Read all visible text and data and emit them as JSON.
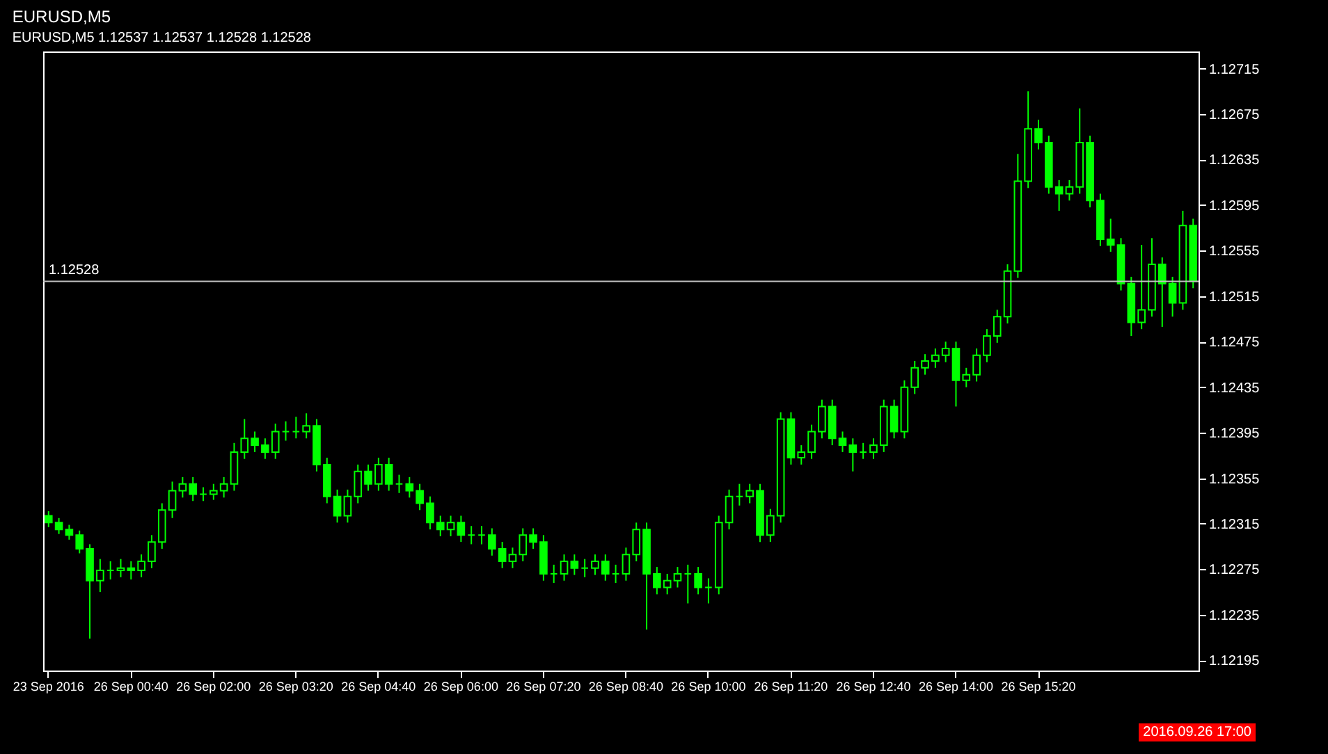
{
  "chart_data": {
    "type": "candlestick",
    "title": "EURUSD,M5",
    "subtitle": "EURUSD,M5  1.12537 1.12537 1.12528 1.12528",
    "color": "#00ff00",
    "categories": [
      "23 Sep 2016",
      null,
      null,
      null,
      null,
      null,
      null,
      null,
      "26 Sep 00:40",
      null,
      null,
      null,
      null,
      null,
      null,
      null,
      "26 Sep 02:00",
      null,
      null,
      null,
      null,
      null,
      null,
      null,
      "26 Sep 03:20",
      null,
      null,
      null,
      null,
      null,
      null,
      null,
      "26 Sep 04:40",
      null,
      null,
      null,
      null,
      null,
      null,
      null,
      "26 Sep 06:00",
      null,
      null,
      null,
      null,
      null,
      null,
      null,
      "26 Sep 07:20",
      null,
      null,
      null,
      null,
      null,
      null,
      null,
      "26 Sep 08:40",
      null,
      null,
      null,
      null,
      null,
      null,
      null,
      "26 Sep 10:00",
      null,
      null,
      null,
      null,
      null,
      null,
      null,
      "26 Sep 11:20",
      null,
      null,
      null,
      null,
      null,
      null,
      null,
      "26 Sep 12:40",
      null,
      null,
      null,
      null,
      null,
      null,
      null,
      "26 Sep 14:00",
      null,
      null,
      null,
      null,
      null,
      null,
      null,
      "26 Sep 15:20",
      null,
      null,
      null,
      null,
      null,
      null,
      null,
      null,
      null,
      null,
      null,
      null,
      null,
      null,
      null
    ],
    "ohlc": [
      [
        1.12322,
        1.12326,
        1.12312,
        1.12316
      ],
      [
        1.12316,
        1.1232,
        1.12306,
        1.1231
      ],
      [
        1.1231,
        1.12314,
        1.12301,
        1.12305
      ],
      [
        1.12305,
        1.12309,
        1.12289,
        1.12293
      ],
      [
        1.12293,
        1.12297,
        1.12214,
        1.12265
      ],
      [
        1.12265,
        1.12284,
        1.12255,
        1.12274
      ],
      [
        1.12274,
        1.12282,
        1.12266,
        1.12274
      ],
      [
        1.12274,
        1.12284,
        1.12268,
        1.12276
      ],
      [
        1.12276,
        1.12282,
        1.12266,
        1.12274
      ],
      [
        1.12274,
        1.12288,
        1.12268,
        1.12282
      ],
      [
        1.12282,
        1.12305,
        1.12276,
        1.12299
      ],
      [
        1.12299,
        1.12333,
        1.12293,
        1.12327
      ],
      [
        1.12327,
        1.12352,
        1.1232,
        1.12344
      ],
      [
        1.12344,
        1.12356,
        1.12338,
        1.1235
      ],
      [
        1.1235,
        1.12356,
        1.12335,
        1.12341
      ],
      [
        1.12341,
        1.12347,
        1.12335,
        1.12341
      ],
      [
        1.12341,
        1.1235,
        1.12336,
        1.12344
      ],
      [
        1.12344,
        1.12356,
        1.12338,
        1.1235
      ],
      [
        1.1235,
        1.12386,
        1.12344,
        1.12378
      ],
      [
        1.12378,
        1.12407,
        1.12372,
        1.1239
      ],
      [
        1.1239,
        1.12396,
        1.12378,
        1.12384
      ],
      [
        1.12384,
        1.1239,
        1.12372,
        1.12378
      ],
      [
        1.12378,
        1.12403,
        1.12372,
        1.12396
      ],
      [
        1.12396,
        1.12405,
        1.12388,
        1.12396
      ],
      [
        1.12396,
        1.12409,
        1.1239,
        1.12396
      ],
      [
        1.12396,
        1.12412,
        1.1239,
        1.12401
      ],
      [
        1.12401,
        1.12407,
        1.12361,
        1.12367
      ],
      [
        1.12367,
        1.12373,
        1.12333,
        1.12339
      ],
      [
        1.12339,
        1.12345,
        1.12316,
        1.12322
      ],
      [
        1.12322,
        1.12345,
        1.12316,
        1.12339
      ],
      [
        1.12339,
        1.12367,
        1.12333,
        1.12361
      ],
      [
        1.12361,
        1.12367,
        1.12344,
        1.1235
      ],
      [
        1.1235,
        1.12373,
        1.12344,
        1.12367
      ],
      [
        1.12367,
        1.12373,
        1.12344,
        1.1235
      ],
      [
        1.1235,
        1.12358,
        1.12342,
        1.1235
      ],
      [
        1.1235,
        1.12356,
        1.12338,
        1.12344
      ],
      [
        1.12344,
        1.1235,
        1.12327,
        1.12333
      ],
      [
        1.12333,
        1.12339,
        1.1231,
        1.12316
      ],
      [
        1.12316,
        1.12322,
        1.12304,
        1.1231
      ],
      [
        1.1231,
        1.12322,
        1.12304,
        1.12316
      ],
      [
        1.12316,
        1.12322,
        1.12299,
        1.12305
      ],
      [
        1.12305,
        1.12313,
        1.12297,
        1.12305
      ],
      [
        1.12305,
        1.12313,
        1.12297,
        1.12305
      ],
      [
        1.12305,
        1.12311,
        1.12287,
        1.12293
      ],
      [
        1.12293,
        1.12299,
        1.12276,
        1.12282
      ],
      [
        1.12282,
        1.12294,
        1.12276,
        1.12288
      ],
      [
        1.12288,
        1.12311,
        1.12282,
        1.12305
      ],
      [
        1.12305,
        1.12311,
        1.12293,
        1.12299
      ],
      [
        1.12299,
        1.12305,
        1.12265,
        1.12271
      ],
      [
        1.12271,
        1.12279,
        1.12263,
        1.12271
      ],
      [
        1.12271,
        1.12288,
        1.12265,
        1.12282
      ],
      [
        1.12282,
        1.12288,
        1.1227,
        1.12276
      ],
      [
        1.12276,
        1.12284,
        1.12268,
        1.12276
      ],
      [
        1.12276,
        1.12288,
        1.1227,
        1.12282
      ],
      [
        1.12282,
        1.12288,
        1.12265,
        1.12271
      ],
      [
        1.12271,
        1.12279,
        1.12263,
        1.12271
      ],
      [
        1.12271,
        1.12294,
        1.12265,
        1.12288
      ],
      [
        1.12288,
        1.12316,
        1.12282,
        1.1231
      ],
      [
        1.1231,
        1.12316,
        1.12222,
        1.12271
      ],
      [
        1.12271,
        1.12277,
        1.12253,
        1.12259
      ],
      [
        1.12259,
        1.12271,
        1.12253,
        1.12265
      ],
      [
        1.12265,
        1.12277,
        1.12259,
        1.12271
      ],
      [
        1.12271,
        1.12279,
        1.12245,
        1.12271
      ],
      [
        1.12271,
        1.12277,
        1.12253,
        1.12259
      ],
      [
        1.12259,
        1.12267,
        1.12245,
        1.12259
      ],
      [
        1.12259,
        1.12322,
        1.12253,
        1.12316
      ],
      [
        1.12316,
        1.12345,
        1.1231,
        1.12339
      ],
      [
        1.12339,
        1.1235,
        1.12331,
        1.12339
      ],
      [
        1.12339,
        1.1235,
        1.12333,
        1.12344
      ],
      [
        1.12344,
        1.1235,
        1.12299,
        1.12305
      ],
      [
        1.12305,
        1.12328,
        1.12299,
        1.12322
      ],
      [
        1.12322,
        1.12413,
        1.12316,
        1.12407
      ],
      [
        1.12407,
        1.12413,
        1.12367,
        1.12373
      ],
      [
        1.12373,
        1.12384,
        1.12367,
        1.12378
      ],
      [
        1.12378,
        1.12402,
        1.12372,
        1.12396
      ],
      [
        1.12396,
        1.12424,
        1.1239,
        1.12418
      ],
      [
        1.12418,
        1.12424,
        1.12384,
        1.1239
      ],
      [
        1.1239,
        1.12396,
        1.12378,
        1.12384
      ],
      [
        1.12384,
        1.1239,
        1.12361,
        1.12378
      ],
      [
        1.12378,
        1.12386,
        1.12372,
        1.12378
      ],
      [
        1.12378,
        1.1239,
        1.12372,
        1.12384
      ],
      [
        1.12384,
        1.12424,
        1.12378,
        1.12418
      ],
      [
        1.12418,
        1.12424,
        1.1239,
        1.12396
      ],
      [
        1.12396,
        1.12441,
        1.1239,
        1.12435
      ],
      [
        1.12435,
        1.12458,
        1.12429,
        1.12452
      ],
      [
        1.12452,
        1.12464,
        1.12446,
        1.12458
      ],
      [
        1.12458,
        1.12469,
        1.12452,
        1.12463
      ],
      [
        1.12463,
        1.12475,
        1.12457,
        1.12469
      ],
      [
        1.12469,
        1.12475,
        1.12418,
        1.12441
      ],
      [
        1.12441,
        1.12452,
        1.12435,
        1.12446
      ],
      [
        1.12446,
        1.12469,
        1.1244,
        1.12463
      ],
      [
        1.12463,
        1.12486,
        1.12457,
        1.1248
      ],
      [
        1.1248,
        1.12503,
        1.12474,
        1.12497
      ],
      [
        1.12497,
        1.12543,
        1.12491,
        1.12537
      ],
      [
        1.12537,
        1.1264,
        1.12531,
        1.12616
      ],
      [
        1.12616,
        1.12695,
        1.1261,
        1.12662
      ],
      [
        1.12662,
        1.1267,
        1.12644,
        1.1265
      ],
      [
        1.1265,
        1.12656,
        1.12605,
        1.12611
      ],
      [
        1.12611,
        1.12617,
        1.1259,
        1.12605
      ],
      [
        1.12605,
        1.12617,
        1.12599,
        1.12611
      ],
      [
        1.12611,
        1.1268,
        1.12605,
        1.1265
      ],
      [
        1.1265,
        1.12656,
        1.12593,
        1.12599
      ],
      [
        1.12599,
        1.12605,
        1.12559,
        1.12565
      ],
      [
        1.12565,
        1.12583,
        1.12554,
        1.1256
      ],
      [
        1.1256,
        1.12566,
        1.1252,
        1.12526
      ],
      [
        1.12526,
        1.12532,
        1.1248,
        1.12492
      ],
      [
        1.12492,
        1.1256,
        1.12486,
        1.12503
      ],
      [
        1.12503,
        1.12566,
        1.12497,
        1.12543
      ],
      [
        1.12543,
        1.12549,
        1.12488,
        1.12526
      ],
      [
        1.12526,
        1.12532,
        1.12497,
        1.12509
      ],
      [
        1.12509,
        1.1259,
        1.12503,
        1.12577
      ],
      [
        1.12577,
        1.12583,
        1.12522,
        1.12528
      ]
    ],
    "ylim": [
      1.12186,
      1.1273
    ],
    "yticks": [
      1.12195,
      1.12235,
      1.12275,
      1.12315,
      1.12355,
      1.12395,
      1.12435,
      1.12475,
      1.12515,
      1.12555,
      1.12595,
      1.12635,
      1.12675,
      1.12715
    ],
    "ref_lines": [
      {
        "axis": "y",
        "value": 1.12528,
        "label": "1.12528",
        "color": "#c0c0c0"
      }
    ],
    "annotations": [
      "2016.09.26 17:00"
    ]
  }
}
